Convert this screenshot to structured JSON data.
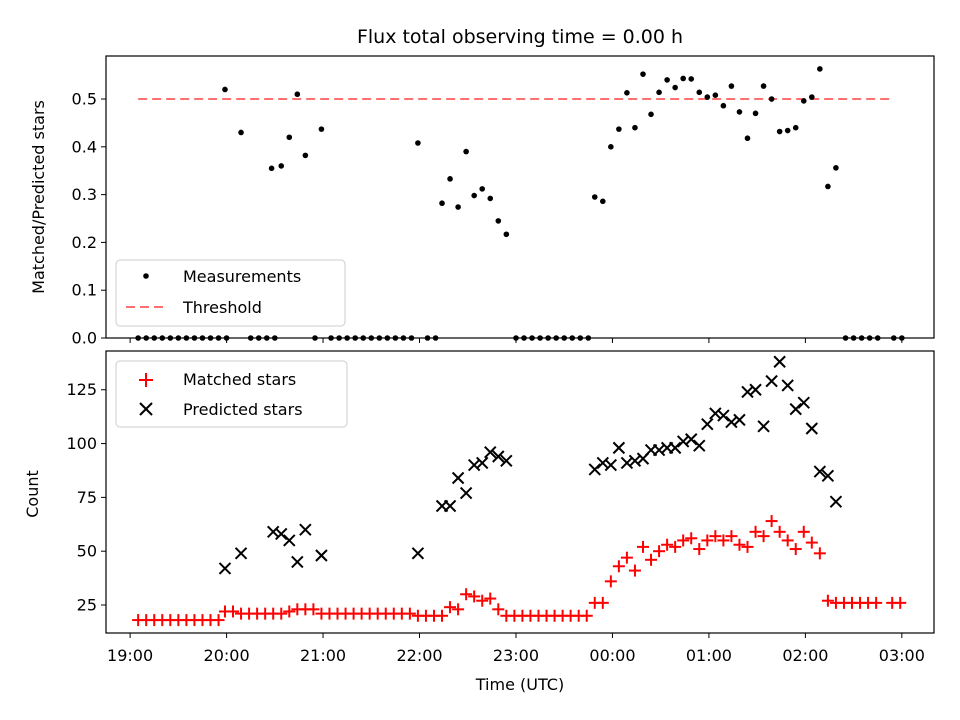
{
  "chart_data": [
    {
      "type": "scatter",
      "title": "Flux total observing time = 0.00 h",
      "xlabel": "",
      "ylabel": "Matched/Predicted stars",
      "xlim": [
        "18:45",
        "03:20"
      ],
      "ylim": [
        0,
        0.59
      ],
      "yticks": [
        "0.0",
        "0.1",
        "0.2",
        "0.3",
        "0.4",
        "0.5"
      ],
      "legend": {
        "position": "lower-left",
        "entries": [
          {
            "label": "Measurements",
            "series": "measurements"
          },
          {
            "label": "Threshold",
            "series": "threshold"
          }
        ]
      },
      "series": [
        {
          "name": "Measurements",
          "id": "measurements",
          "marker": "dot",
          "color": "#000000",
          "points": [
            [
              "19:05",
              0
            ],
            [
              "19:10",
              0
            ],
            [
              "19:15",
              0
            ],
            [
              "19:20",
              0
            ],
            [
              "19:25",
              0
            ],
            [
              "19:30",
              0
            ],
            [
              "19:35",
              0
            ],
            [
              "19:40",
              0
            ],
            [
              "19:45",
              0
            ],
            [
              "19:50",
              0
            ],
            [
              "19:55",
              0
            ],
            [
              "19:59",
              0.52
            ],
            [
              "20:09",
              0.43
            ],
            [
              "20:00",
              0
            ],
            [
              "20:15",
              0
            ],
            [
              "20:20",
              0
            ],
            [
              "20:25",
              0
            ],
            [
              "20:30",
              0
            ],
            [
              "20:28",
              0.355
            ],
            [
              "20:34",
              0.36
            ],
            [
              "20:39",
              0.42
            ],
            [
              "20:44",
              0.51
            ],
            [
              "20:49",
              0.382
            ],
            [
              "20:55",
              0
            ],
            [
              "20:59",
              0.437
            ],
            [
              "21:05",
              0
            ],
            [
              "21:10",
              0
            ],
            [
              "21:15",
              0
            ],
            [
              "21:20",
              0
            ],
            [
              "21:25",
              0
            ],
            [
              "21:30",
              0
            ],
            [
              "21:35",
              0
            ],
            [
              "21:40",
              0
            ],
            [
              "21:45",
              0
            ],
            [
              "21:50",
              0
            ],
            [
              "21:55",
              0
            ],
            [
              "21:59",
              0.408
            ],
            [
              "22:05",
              0
            ],
            [
              "22:10",
              0
            ],
            [
              "22:14",
              0.282
            ],
            [
              "22:19",
              0.333
            ],
            [
              "22:24",
              0.274
            ],
            [
              "22:29",
              0.39
            ],
            [
              "22:34",
              0.298
            ],
            [
              "22:39",
              0.312
            ],
            [
              "22:44",
              0.292
            ],
            [
              "22:49",
              0.245
            ],
            [
              "22:54",
              0.217
            ],
            [
              "23:00",
              0
            ],
            [
              "23:05",
              0
            ],
            [
              "23:10",
              0
            ],
            [
              "23:15",
              0
            ],
            [
              "23:20",
              0
            ],
            [
              "23:25",
              0
            ],
            [
              "23:30",
              0
            ],
            [
              "23:35",
              0
            ],
            [
              "23:40",
              0
            ],
            [
              "23:45",
              0
            ],
            [
              "23:49",
              0.295
            ],
            [
              "23:54",
              0.286
            ],
            [
              "23:59",
              0.4
            ],
            [
              "00:04",
              0.437
            ],
            [
              "00:09",
              0.513
            ],
            [
              "00:14",
              0.44
            ],
            [
              "00:19",
              0.552
            ],
            [
              "00:24",
              0.468
            ],
            [
              "00:29",
              0.514
            ],
            [
              "00:34",
              0.54
            ],
            [
              "00:39",
              0.524
            ],
            [
              "00:44",
              0.543
            ],
            [
              "00:49",
              0.542
            ],
            [
              "00:54",
              0.514
            ],
            [
              "00:59",
              0.504
            ],
            [
              "01:04",
              0.508
            ],
            [
              "01:09",
              0.486
            ],
            [
              "01:14",
              0.527
            ],
            [
              "01:19",
              0.473
            ],
            [
              "01:24",
              0.418
            ],
            [
              "01:29",
              0.47
            ],
            [
              "01:34",
              0.527
            ],
            [
              "01:39",
              0.5
            ],
            [
              "01:44",
              0.432
            ],
            [
              "01:49",
              0.434
            ],
            [
              "01:54",
              0.44
            ],
            [
              "01:59",
              0.496
            ],
            [
              "02:04",
              0.504
            ],
            [
              "02:09",
              0.563
            ],
            [
              "02:14",
              0.317
            ],
            [
              "02:19",
              0.356
            ],
            [
              "02:25",
              0
            ],
            [
              "02:30",
              0
            ],
            [
              "02:35",
              0
            ],
            [
              "02:40",
              0
            ],
            [
              "02:45",
              0
            ],
            [
              "02:55",
              0
            ],
            [
              "03:00",
              0
            ]
          ]
        },
        {
          "name": "Threshold",
          "id": "threshold",
          "style": "dashed",
          "color": "#ff7070",
          "x": [
            "19:05",
            "02:55"
          ],
          "y": [
            0.5,
            0.5
          ]
        }
      ]
    },
    {
      "type": "scatter",
      "title": "",
      "xlabel": "Time (UTC)",
      "ylabel": "Count",
      "xlim": [
        "18:45",
        "03:20"
      ],
      "ylim": [
        12,
        143
      ],
      "yticks": [
        "25",
        "50",
        "75",
        "100",
        "125"
      ],
      "xticks": [
        "19:00",
        "20:00",
        "21:00",
        "22:00",
        "23:00",
        "00:00",
        "01:00",
        "02:00",
        "03:00"
      ],
      "legend": {
        "position": "upper-left",
        "entries": [
          {
            "label": "Matched stars",
            "series": "matched"
          },
          {
            "label": "Predicted stars",
            "series": "predicted"
          }
        ]
      },
      "series": [
        {
          "name": "Matched stars",
          "id": "matched",
          "marker": "plus",
          "color": "#ff0000",
          "points": [
            [
              "19:05",
              18
            ],
            [
              "19:10",
              18
            ],
            [
              "19:15",
              18
            ],
            [
              "19:20",
              18
            ],
            [
              "19:25",
              18
            ],
            [
              "19:30",
              18
            ],
            [
              "19:35",
              18
            ],
            [
              "19:40",
              18
            ],
            [
              "19:45",
              18
            ],
            [
              "19:50",
              18
            ],
            [
              "19:55",
              18
            ],
            [
              "19:59",
              22
            ],
            [
              "20:04",
              22
            ],
            [
              "20:09",
              21
            ],
            [
              "20:14",
              21
            ],
            [
              "20:19",
              21
            ],
            [
              "20:24",
              21
            ],
            [
              "20:29",
              21
            ],
            [
              "20:34",
              21
            ],
            [
              "20:39",
              22
            ],
            [
              "20:44",
              23
            ],
            [
              "20:49",
              23
            ],
            [
              "20:54",
              23
            ],
            [
              "20:59",
              21
            ],
            [
              "21:04",
              21
            ],
            [
              "21:09",
              21
            ],
            [
              "21:14",
              21
            ],
            [
              "21:19",
              21
            ],
            [
              "21:24",
              21
            ],
            [
              "21:29",
              21
            ],
            [
              "21:34",
              21
            ],
            [
              "21:39",
              21
            ],
            [
              "21:44",
              21
            ],
            [
              "21:49",
              21
            ],
            [
              "21:54",
              21
            ],
            [
              "21:59",
              20
            ],
            [
              "22:04",
              20
            ],
            [
              "22:09",
              20
            ],
            [
              "22:14",
              20
            ],
            [
              "22:19",
              24
            ],
            [
              "22:24",
              23
            ],
            [
              "22:29",
              30
            ],
            [
              "22:34",
              29
            ],
            [
              "22:39",
              27
            ],
            [
              "22:44",
              28
            ],
            [
              "22:49",
              23
            ],
            [
              "22:54",
              20
            ],
            [
              "22:59",
              20
            ],
            [
              "23:04",
              20
            ],
            [
              "23:09",
              20
            ],
            [
              "23:14",
              20
            ],
            [
              "23:19",
              20
            ],
            [
              "23:24",
              20
            ],
            [
              "23:29",
              20
            ],
            [
              "23:34",
              20
            ],
            [
              "23:39",
              20
            ],
            [
              "23:44",
              20
            ],
            [
              "23:49",
              26
            ],
            [
              "23:54",
              26
            ],
            [
              "23:59",
              36
            ],
            [
              "00:04",
              43
            ],
            [
              "00:09",
              47
            ],
            [
              "00:14",
              41
            ],
            [
              "00:19",
              52
            ],
            [
              "00:24",
              46
            ],
            [
              "00:29",
              50
            ],
            [
              "00:34",
              53
            ],
            [
              "00:39",
              52
            ],
            [
              "00:44",
              55
            ],
            [
              "00:49",
              56
            ],
            [
              "00:54",
              51
            ],
            [
              "00:59",
              55
            ],
            [
              "01:04",
              57
            ],
            [
              "01:09",
              55
            ],
            [
              "01:14",
              57
            ],
            [
              "01:19",
              53
            ],
            [
              "01:24",
              52
            ],
            [
              "01:29",
              59
            ],
            [
              "01:34",
              57
            ],
            [
              "01:39",
              64
            ],
            [
              "01:44",
              59
            ],
            [
              "01:49",
              55
            ],
            [
              "01:54",
              51
            ],
            [
              "01:59",
              59
            ],
            [
              "02:04",
              54
            ],
            [
              "02:09",
              49
            ],
            [
              "02:14",
              27
            ],
            [
              "02:19",
              26
            ],
            [
              "02:24",
              26
            ],
            [
              "02:29",
              26
            ],
            [
              "02:34",
              26
            ],
            [
              "02:39",
              26
            ],
            [
              "02:44",
              26
            ],
            [
              "02:54",
              26
            ],
            [
              "02:59",
              26
            ]
          ]
        },
        {
          "name": "Predicted stars",
          "id": "predicted",
          "marker": "x",
          "color": "#000000",
          "points": [
            [
              "19:59",
              42
            ],
            [
              "20:09",
              49
            ],
            [
              "20:29",
              59
            ],
            [
              "20:34",
              58
            ],
            [
              "20:39",
              55
            ],
            [
              "20:44",
              45
            ],
            [
              "20:49",
              60
            ],
            [
              "20:59",
              48
            ],
            [
              "21:59",
              49
            ],
            [
              "22:14",
              71
            ],
            [
              "22:19",
              71
            ],
            [
              "22:24",
              84
            ],
            [
              "22:29",
              77
            ],
            [
              "22:34",
              90
            ],
            [
              "22:39",
              91
            ],
            [
              "22:44",
              96
            ],
            [
              "22:49",
              94
            ],
            [
              "22:54",
              92
            ],
            [
              "23:49",
              88
            ],
            [
              "23:54",
              91
            ],
            [
              "23:59",
              90
            ],
            [
              "00:04",
              98
            ],
            [
              "00:09",
              91
            ],
            [
              "00:14",
              92
            ],
            [
              "00:19",
              93
            ],
            [
              "00:24",
              97
            ],
            [
              "00:29",
              97
            ],
            [
              "00:34",
              98
            ],
            [
              "00:39",
              98
            ],
            [
              "00:44",
              101
            ],
            [
              "00:49",
              102
            ],
            [
              "00:54",
              99
            ],
            [
              "00:59",
              109
            ],
            [
              "01:04",
              114
            ],
            [
              "01:09",
              113
            ],
            [
              "01:14",
              110
            ],
            [
              "01:19",
              111
            ],
            [
              "01:24",
              124
            ],
            [
              "01:29",
              125
            ],
            [
              "01:34",
              108
            ],
            [
              "01:39",
              129
            ],
            [
              "01:44",
              138
            ],
            [
              "01:49",
              127
            ],
            [
              "01:54",
              116
            ],
            [
              "01:59",
              119
            ],
            [
              "02:04",
              107
            ],
            [
              "02:09",
              87
            ],
            [
              "02:14",
              85
            ],
            [
              "02:19",
              73
            ]
          ]
        }
      ]
    }
  ]
}
